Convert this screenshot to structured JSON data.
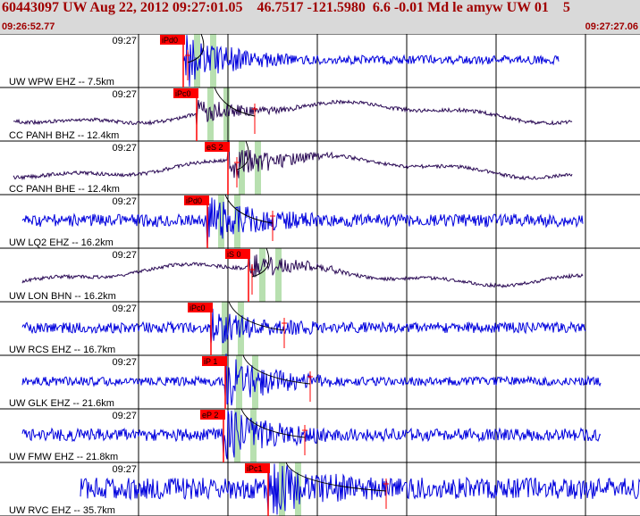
{
  "header": {
    "title": "60443097 UW Aug 22, 2012 09:27:01.05    46.7517 -121.5980  6.6 -0.01 Md le amyw UW 01    5",
    "start_time": "09:26:52.77",
    "end_time": "09:27:27.06"
  },
  "colors": {
    "header_bg": "#d9d9d9",
    "header_text": "#a00000",
    "wave_blue": "#0000dd",
    "wave_dark": "#2a0a55",
    "pick_box": "#ff0000",
    "pick_line": "#ff0000",
    "green_band": "#b8e0b0",
    "arrival_curve": "#000000"
  },
  "traces": [
    {
      "station_label": "UW WPW EHZ -- 7.5km",
      "time_label": "09:27",
      "pick_label": "iPd0",
      "wave": "blue",
      "sig_start": 205,
      "sig_end": 625,
      "amp": 5,
      "event_at": 208,
      "burst_amp": 28,
      "lf": false
    },
    {
      "station_label": "CC PANH BHZ -- 12.4km",
      "time_label": "09:27",
      "pick_label": "iPc0",
      "wave": "dark",
      "sig_start": 15,
      "sig_end": 640,
      "amp": 2,
      "event_at": 220,
      "burst_amp": 14,
      "lf": true
    },
    {
      "station_label": "CC PANH BHE -- 12.4km",
      "time_label": "09:27",
      "pick_label": "eS 2",
      "wave": "dark",
      "sig_start": 15,
      "sig_end": 640,
      "amp": 2,
      "event_at": 255,
      "burst_amp": 22,
      "lf": true
    },
    {
      "station_label": "UW LQ2 EHZ -- 16.2km",
      "time_label": "09:27",
      "pick_label": "iPd0",
      "wave": "blue",
      "sig_start": 25,
      "sig_end": 652,
      "amp": 7,
      "event_at": 232,
      "burst_amp": 24,
      "lf": false
    },
    {
      "station_label": "UW LON BHN -- 16.2km",
      "time_label": "09:27",
      "pick_label": "iS 0",
      "wave": "dark",
      "sig_start": 25,
      "sig_end": 652,
      "amp": 2,
      "event_at": 278,
      "burst_amp": 16,
      "lf": true
    },
    {
      "station_label": "UW RCS EHZ -- 16.7km",
      "time_label": "09:27",
      "pick_label": "iPc0",
      "wave": "blue",
      "sig_start": 25,
      "sig_end": 655,
      "amp": 6,
      "event_at": 236,
      "burst_amp": 18,
      "lf": false
    },
    {
      "station_label": "UW GLK EHZ -- 21.6km",
      "time_label": "09:27",
      "pick_label": "iP 1",
      "wave": "blue",
      "sig_start": 25,
      "sig_end": 672,
      "amp": 5,
      "event_at": 252,
      "burst_amp": 28,
      "lf": false
    },
    {
      "station_label": "UW FMW EHZ -- 21.8km",
      "time_label": "09:27",
      "pick_label": "eP 2",
      "wave": "blue",
      "sig_start": 25,
      "sig_end": 672,
      "amp": 7,
      "event_at": 250,
      "burst_amp": 26,
      "lf": false
    },
    {
      "station_label": "UW RVC EHZ -- 35.7km",
      "time_label": "09:27",
      "pick_label": "iPc1",
      "wave": "blue",
      "sig_start": 90,
      "sig_end": 716,
      "amp": 12,
      "event_at": 300,
      "burst_amp": 22,
      "lf": false
    }
  ]
}
